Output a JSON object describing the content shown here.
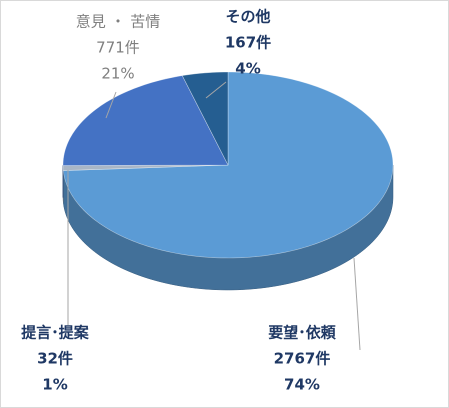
{
  "chart_data": {
    "type": "pie3d",
    "categories": [
      "要望･依頼",
      "提言･提案",
      "意見 ・ 苦情",
      "その他"
    ],
    "values": [
      2767,
      32,
      771,
      167
    ],
    "value_labels": [
      "2767件",
      "32件",
      "771件",
      "167件"
    ],
    "percents": [
      74,
      1,
      21,
      4
    ],
    "percent_labels": [
      "74%",
      "1%",
      "21%",
      "4%"
    ],
    "colors": [
      "#5b9bd5",
      "#a9b6c6",
      "#4472c4",
      "#255e91"
    ]
  }
}
